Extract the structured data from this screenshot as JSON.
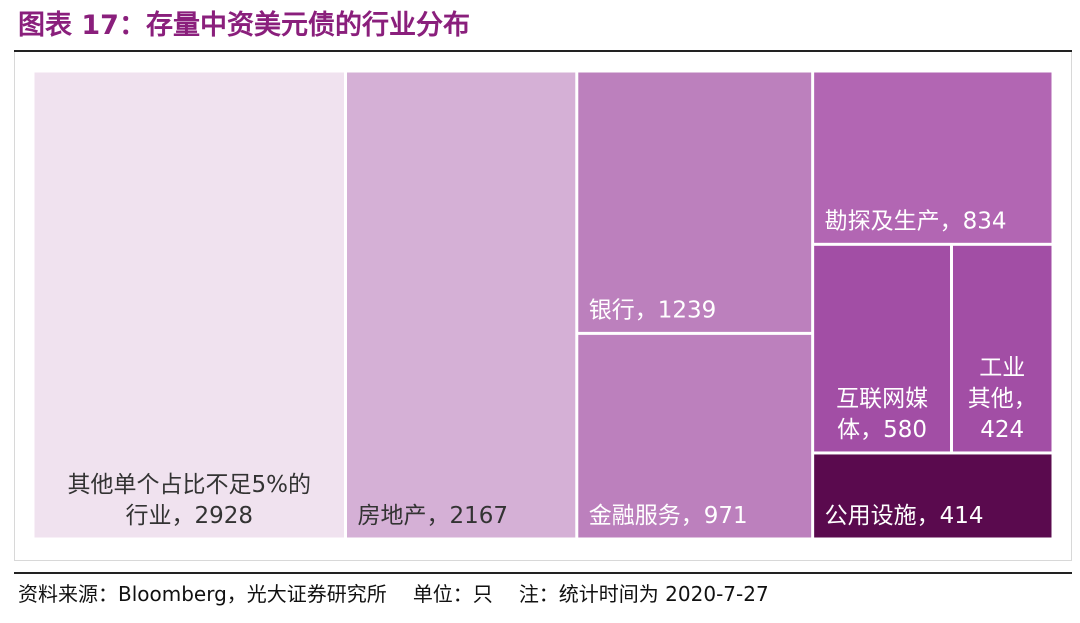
{
  "header": {
    "title": "图表 17：存量中资美元债的行业分布"
  },
  "footer": {
    "source": "资料来源：Bloomberg，光大证券研究所",
    "unit": "单位：只",
    "note": "注：统计时间为 2020-7-27"
  },
  "chart_data": {
    "type": "treemap",
    "series": [
      {
        "name": "其他单个占比不足5%的行业",
        "label_lines": [
          "其他单个占比不足5%的",
          "行业，2928"
        ],
        "value": 2928,
        "color": "#f0e2ef",
        "text_color": "#333333"
      },
      {
        "name": "房地产",
        "label_lines": [
          "房地产，2167"
        ],
        "value": 2167,
        "color": "#d5b0d6",
        "text_color": "#333333"
      },
      {
        "name": "银行",
        "label_lines": [
          "银行，1239"
        ],
        "value": 1239,
        "color": "#bc80bd",
        "text_color": "#ffffff"
      },
      {
        "name": "金融服务",
        "label_lines": [
          "金融服务，971"
        ],
        "value": 971,
        "color": "#bc80bd",
        "text_color": "#ffffff"
      },
      {
        "name": "勘探及生产",
        "label_lines": [
          "勘探及生产，834"
        ],
        "value": 834,
        "color": "#b266b3",
        "text_color": "#ffffff"
      },
      {
        "name": "互联网媒体",
        "label_lines": [
          "互联网媒",
          "体，580"
        ],
        "value": 580,
        "color": "#a24ea5",
        "text_color": "#ffffff"
      },
      {
        "name": "工业其他",
        "label_lines": [
          "工业",
          "其他，",
          "424"
        ],
        "value": 424,
        "color": "#a24ea5",
        "text_color": "#ffffff"
      },
      {
        "name": "公用设施",
        "label_lines": [
          "公用设施，414"
        ],
        "value": 414,
        "color": "#5a0a4e",
        "text_color": "#ffffff"
      }
    ]
  }
}
